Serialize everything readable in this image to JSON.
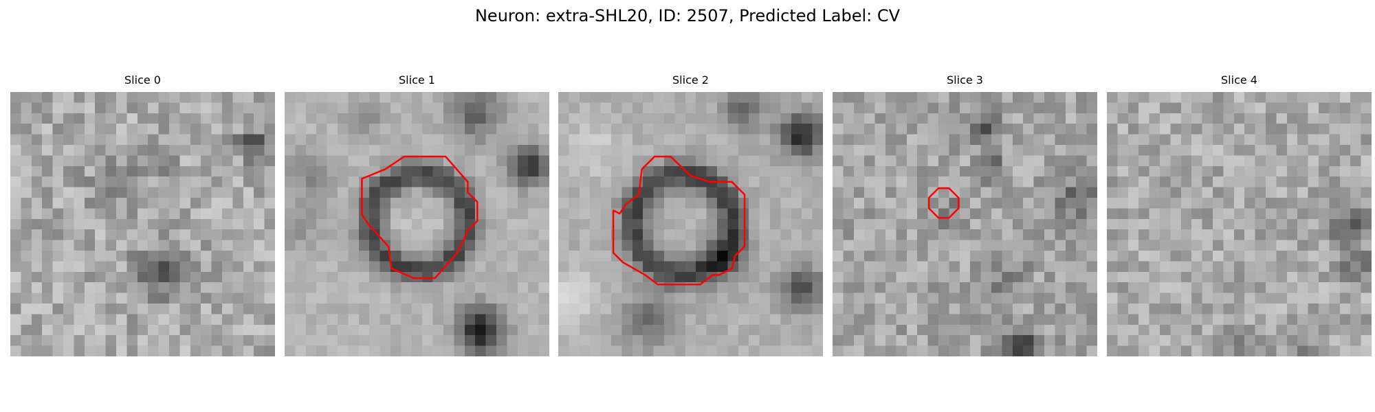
{
  "figure": {
    "title": "Neuron: extra-SHL20, ID: 2507, Predicted Label: CV"
  },
  "contour_color": "#ff0000",
  "slices": [
    {
      "title": "Slice 0",
      "has_contour": false,
      "contour": []
    },
    {
      "title": "Slice 1",
      "has_contour": true,
      "contour": [
        [
          9.5,
          7.3
        ],
        [
          11.3,
          6.1
        ],
        [
          15.2,
          6.1
        ],
        [
          17.3,
          8.5
        ],
        [
          17.3,
          9.5
        ],
        [
          18.2,
          10.4
        ],
        [
          18.2,
          12.2
        ],
        [
          17.3,
          13.1
        ],
        [
          16.3,
          15.2
        ],
        [
          14.2,
          17.6
        ],
        [
          12.2,
          17.6
        ],
        [
          10.1,
          16.7
        ],
        [
          9.8,
          14.6
        ],
        [
          7.9,
          12.5
        ],
        [
          7.3,
          11.6
        ],
        [
          7.3,
          8.2
        ]
      ]
    },
    {
      "title": "Slice 2",
      "has_contour": true,
      "contour": [
        [
          7.6,
          9.7
        ],
        [
          7.9,
          7.3
        ],
        [
          9.1,
          6.1
        ],
        [
          10.6,
          6.1
        ],
        [
          12.5,
          7.9
        ],
        [
          13.4,
          8.2
        ],
        [
          14.3,
          8.5
        ],
        [
          16.4,
          8.5
        ],
        [
          17.6,
          9.7
        ],
        [
          17.6,
          14.6
        ],
        [
          16.7,
          15.5
        ],
        [
          16.4,
          16.7
        ],
        [
          15.2,
          17.3
        ],
        [
          14.6,
          17.3
        ],
        [
          13.4,
          18.2
        ],
        [
          9.4,
          18.2
        ],
        [
          8.2,
          17.3
        ],
        [
          6.1,
          16.1
        ],
        [
          5.2,
          15.2
        ],
        [
          5.2,
          11.2
        ],
        [
          5.8,
          11.5
        ],
        [
          6.4,
          10.6
        ]
      ]
    },
    {
      "title": "Slice 3",
      "has_contour": true,
      "contour": [
        [
          9.1,
          10.0
        ],
        [
          10.0,
          9.1
        ],
        [
          11.0,
          9.1
        ],
        [
          11.9,
          10.0
        ],
        [
          11.9,
          11.0
        ],
        [
          11.0,
          11.9
        ],
        [
          10.0,
          11.9
        ],
        [
          9.1,
          11.0
        ]
      ]
    },
    {
      "title": "Slice 4",
      "has_contour": false,
      "contour": []
    }
  ]
}
